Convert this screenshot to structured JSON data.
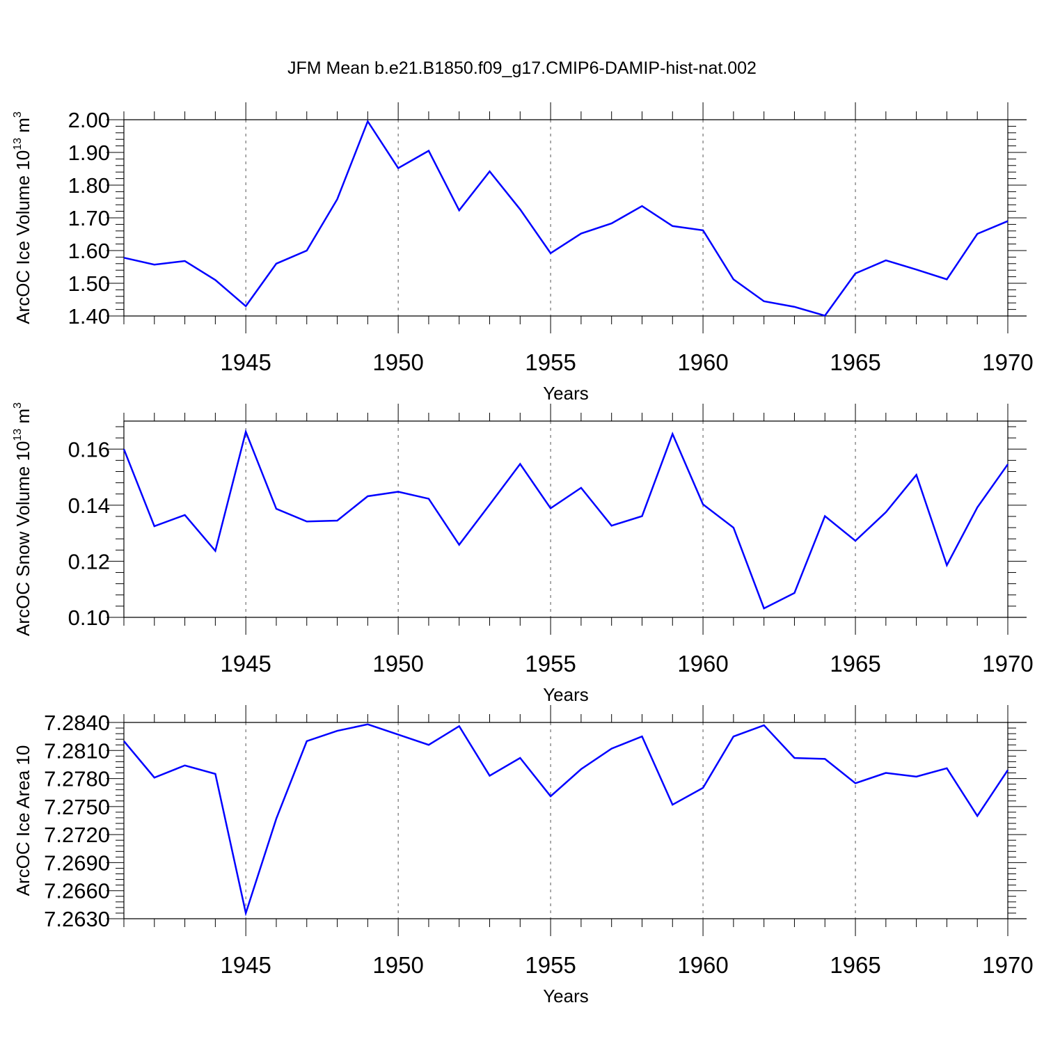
{
  "title": "JFM Mean b.e21.B1850.f09_g17.CMIP6-DAMIP-hist-nat.002",
  "line_color": "#0000ff",
  "chart_data": [
    {
      "type": "line",
      "ylabel": "ArcOC Ice Volume 10",
      "ylabel_sup": "13",
      "ylabel_unit": " m",
      "ylabel_unit_sup": "3",
      "xlabel": "Years",
      "xlim": [
        1941,
        1970
      ],
      "ylim": [
        1.4,
        2.0
      ],
      "yticks": [
        1.4,
        1.5,
        1.6,
        1.7,
        1.8,
        1.9,
        2.0
      ],
      "ytick_labels": [
        "1.40",
        "1.50",
        "1.60",
        "1.70",
        "1.80",
        "1.90",
        "2.00"
      ],
      "xticks": [
        1945,
        1950,
        1955,
        1960,
        1965,
        1970
      ],
      "xtick_labels": [
        "1945",
        "1950",
        "1955",
        "1960",
        "1965",
        "1970"
      ],
      "grid": "vertical-dashed",
      "x": [
        1941,
        1942,
        1943,
        1944,
        1945,
        1946,
        1947,
        1948,
        1949,
        1950,
        1951,
        1952,
        1953,
        1954,
        1955,
        1956,
        1957,
        1958,
        1959,
        1960,
        1961,
        1962,
        1963,
        1964,
        1965,
        1966,
        1967,
        1968,
        1969,
        1970
      ],
      "values": [
        1.578,
        1.557,
        1.568,
        1.51,
        1.43,
        1.56,
        1.6,
        1.757,
        1.995,
        1.852,
        1.905,
        1.723,
        1.842,
        1.726,
        1.592,
        1.652,
        1.683,
        1.736,
        1.675,
        1.662,
        1.512,
        1.445,
        1.428,
        1.401,
        1.53,
        1.57,
        1.542,
        1.512,
        1.651,
        1.69
      ]
    },
    {
      "type": "line",
      "ylabel": "ArcOC Snow Volume 10",
      "ylabel_sup": "13",
      "ylabel_unit": " m",
      "ylabel_unit_sup": "3",
      "xlabel": "Years",
      "xlim": [
        1941,
        1970
      ],
      "ylim": [
        0.1,
        0.17
      ],
      "yticks": [
        0.1,
        0.12,
        0.14,
        0.16
      ],
      "ytick_labels": [
        "0.10",
        "0.12",
        "0.14",
        "0.16"
      ],
      "xticks": [
        1945,
        1950,
        1955,
        1960,
        1965,
        1970
      ],
      "xtick_labels": [
        "1945",
        "1950",
        "1955",
        "1960",
        "1965",
        "1970"
      ],
      "grid": "vertical-dashed",
      "x": [
        1941,
        1942,
        1943,
        1944,
        1945,
        1946,
        1947,
        1948,
        1949,
        1950,
        1951,
        1952,
        1953,
        1954,
        1955,
        1956,
        1957,
        1958,
        1959,
        1960,
        1961,
        1962,
        1963,
        1964,
        1965,
        1966,
        1967,
        1968,
        1969,
        1970
      ],
      "values": [
        0.16,
        0.1325,
        0.1365,
        0.1237,
        0.1662,
        0.1387,
        0.1342,
        0.1345,
        0.1432,
        0.1448,
        0.1423,
        0.1259,
        0.1402,
        0.1547,
        0.1389,
        0.1462,
        0.1327,
        0.1361,
        0.1654,
        0.1403,
        0.132,
        0.1032,
        0.1087,
        0.1361,
        0.1273,
        0.1375,
        0.1508,
        0.1186,
        0.1392,
        0.1546
      ]
    },
    {
      "type": "line",
      "ylabel": "ArcOC Ice Area 10",
      "ylabel_sup": "",
      "ylabel_unit": "",
      "ylabel_unit_sup": "",
      "xlabel": "Years",
      "xlim": [
        1941,
        1970
      ],
      "ylim": [
        7.263,
        7.284
      ],
      "yticks": [
        7.263,
        7.266,
        7.269,
        7.272,
        7.275,
        7.278,
        7.281,
        7.284
      ],
      "ytick_labels": [
        "7.2630",
        "7.2660",
        "7.2690",
        "7.2720",
        "7.2750",
        "7.2780",
        "7.2810",
        "7.2840"
      ],
      "xticks": [
        1945,
        1950,
        1955,
        1960,
        1965,
        1970
      ],
      "xtick_labels": [
        "1945",
        "1950",
        "1955",
        "1960",
        "1965",
        "1970"
      ],
      "grid": "vertical-dashed",
      "x": [
        1941,
        1942,
        1943,
        1944,
        1945,
        1946,
        1947,
        1948,
        1949,
        1950,
        1951,
        1952,
        1953,
        1954,
        1955,
        1956,
        1957,
        1958,
        1959,
        1960,
        1961,
        1962,
        1963,
        1964,
        1965,
        1966,
        1967,
        1968,
        1969,
        1970
      ],
      "values": [
        7.282,
        7.2781,
        7.2794,
        7.2785,
        7.2636,
        7.2737,
        7.282,
        7.2831,
        7.2838,
        7.2827,
        7.2816,
        7.2836,
        7.2783,
        7.2802,
        7.2761,
        7.279,
        7.2812,
        7.2825,
        7.2752,
        7.277,
        7.2825,
        7.2837,
        7.2802,
        7.2801,
        7.2775,
        7.2786,
        7.2782,
        7.2791,
        7.274,
        7.2789
      ]
    }
  ]
}
